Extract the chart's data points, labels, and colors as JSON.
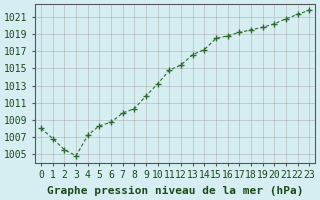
{
  "x": [
    0,
    1,
    2,
    3,
    4,
    5,
    6,
    7,
    8,
    9,
    10,
    11,
    12,
    13,
    14,
    15,
    16,
    17,
    18,
    19,
    20,
    21,
    22,
    23
  ],
  "y": [
    1008.0,
    1006.8,
    1005.5,
    1004.8,
    1007.2,
    1008.3,
    1008.7,
    1009.8,
    1010.3,
    1011.8,
    1013.2,
    1014.8,
    1015.4,
    1016.6,
    1017.2,
    1018.5,
    1018.8,
    1019.2,
    1019.5,
    1019.8,
    1020.2,
    1020.8,
    1021.3,
    1021.8
  ],
  "line_color": "#2d6a2d",
  "marker": "+",
  "bg_color": "#d6eef2",
  "grid_color": "#aaaaaa",
  "xlabel": "Graphe pression niveau de la mer (hPa)",
  "xlabel_color": "#1a4a1a",
  "ytick_labels": [
    "1005",
    "1007",
    "1009",
    "1011",
    "1013",
    "1015",
    "1017",
    "1019",
    "1021"
  ],
  "ytick_values": [
    1005,
    1007,
    1009,
    1011,
    1013,
    1015,
    1017,
    1019,
    1021
  ],
  "ylim": [
    1004.0,
    1022.5
  ],
  "xlim": [
    -0.5,
    23.5
  ],
  "xtick_labels": [
    "0",
    "1",
    "2",
    "3",
    "4",
    "5",
    "6",
    "7",
    "8",
    "9",
    "10",
    "11",
    "12",
    "13",
    "14",
    "15",
    "16",
    "17",
    "18",
    "19",
    "20",
    "21",
    "22",
    "23"
  ],
  "tick_color": "#1a4a1a",
  "axis_color": "#555555",
  "title_fontsize": 8,
  "tick_fontsize": 7
}
